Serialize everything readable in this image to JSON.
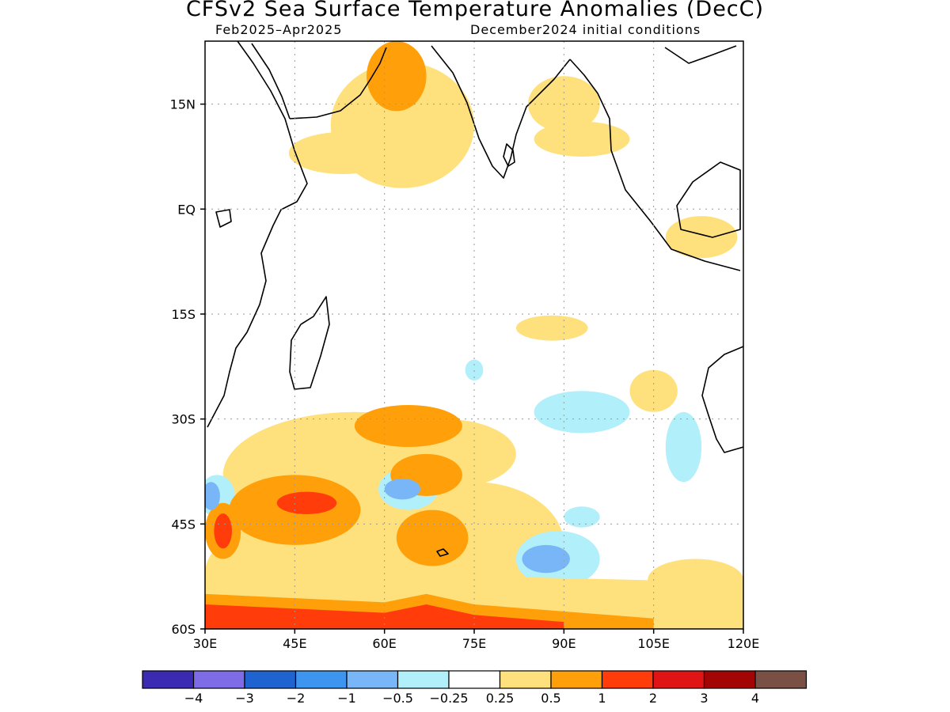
{
  "title": "CFSv2 Sea Surface Temperature Anomalies (DecC)",
  "subtitle_left": "Feb2025–Apr2025",
  "subtitle_right": "December2024 initial conditions",
  "axes": {
    "lon_range": [
      30,
      120
    ],
    "lat_range": [
      -60,
      24
    ],
    "y_ticks": [
      {
        "label": "15N",
        "lat": 15
      },
      {
        "label": "EQ",
        "lat": 0
      },
      {
        "label": "15S",
        "lat": -15
      },
      {
        "label": "30S",
        "lat": -30
      },
      {
        "label": "45S",
        "lat": -45
      },
      {
        "label": "60S",
        "lat": -60
      }
    ],
    "x_ticks": [
      {
        "label": "30E",
        "lon": 30
      },
      {
        "label": "45E",
        "lon": 45
      },
      {
        "label": "60E",
        "lon": 60
      },
      {
        "label": "75E",
        "lon": 75
      },
      {
        "label": "90E",
        "lon": 90
      },
      {
        "label": "105E",
        "lon": 105
      },
      {
        "label": "120E",
        "lon": 120
      }
    ],
    "grid": "dotted"
  },
  "colorbar": {
    "colors": [
      "#3b2bb3",
      "#7e6be6",
      "#1e63cf",
      "#3d95f0",
      "#78b6f7",
      "#b1effa",
      "#ffffff",
      "#fee17d",
      "#ffa00a",
      "#ff3c0a",
      "#e01414",
      "#a30505",
      "#7a5045"
    ],
    "labels": [
      "−4",
      "−3",
      "−2",
      "−1",
      "−0.5",
      "−0.25",
      "0.25",
      "0.5",
      "1",
      "2",
      "3",
      "4"
    ]
  },
  "anomaly_regions": [
    {
      "level": "0.5",
      "color": "#fee17d",
      "lon": 55,
      "lat": -38,
      "dlon": 22,
      "dlat": 9
    },
    {
      "level": "0.5",
      "color": "#fee17d",
      "lon": 48,
      "lat": -52,
      "dlon": 18,
      "dlat": 8
    },
    {
      "level": "0.5",
      "color": "#fee17d",
      "lon": 75,
      "lat": -48,
      "dlon": 15,
      "dlat": 9
    },
    {
      "level": "0.5",
      "color": "#fee17d",
      "lon": 70,
      "lat": -35,
      "dlon": 12,
      "dlat": 5
    },
    {
      "level": "0.5",
      "color": "#fee17d",
      "lon": 63,
      "lat": 12,
      "dlon": 12,
      "dlat": 9
    },
    {
      "level": "0.5",
      "color": "#fee17d",
      "lon": 53,
      "lat": 8,
      "dlon": 9,
      "dlat": 3
    },
    {
      "level": "0.5",
      "color": "#fee17d",
      "lon": 90,
      "lat": 15,
      "dlon": 6,
      "dlat": 4
    },
    {
      "level": "0.5",
      "color": "#fee17d",
      "lon": 93,
      "lat": 10,
      "dlon": 8,
      "dlat": 2.5
    },
    {
      "level": "0.5",
      "color": "#fee17d",
      "lon": 113,
      "lat": -4,
      "dlon": 6,
      "dlat": 3
    },
    {
      "level": "0.5",
      "color": "#fee17d",
      "lon": 88,
      "lat": -17,
      "dlon": 6,
      "dlat": 1.8
    },
    {
      "level": "0.5",
      "color": "#fee17d",
      "lon": 105,
      "lat": -26,
      "dlon": 4,
      "dlat": 3
    },
    {
      "level": "0.5",
      "color": "#fee17d",
      "lon": 112,
      "lat": -53,
      "dlon": 8,
      "dlat": 3
    },
    {
      "level": "1",
      "color": "#ffa00a",
      "lon": 64,
      "lat": -31,
      "dlon": 9,
      "dlat": 3
    },
    {
      "level": "1",
      "color": "#ffa00a",
      "lon": 67,
      "lat": -38,
      "dlon": 6,
      "dlat": 3
    },
    {
      "level": "1",
      "color": "#ffa00a",
      "lon": 45,
      "lat": -43,
      "dlon": 11,
      "dlat": 5
    },
    {
      "level": "1",
      "color": "#ffa00a",
      "lon": 68,
      "lat": -47,
      "dlon": 6,
      "dlat": 4
    },
    {
      "level": "1",
      "color": "#ffa00a",
      "lon": 62,
      "lat": 19,
      "dlon": 5,
      "dlat": 5
    },
    {
      "level": "1",
      "color": "#ffa00a",
      "lon": 33,
      "lat": -46,
      "dlon": 3,
      "dlat": 4
    },
    {
      "level": "2",
      "color": "#ff3c0a",
      "lon": 47,
      "lat": -42,
      "dlon": 5,
      "dlat": 1.6
    },
    {
      "level": "2",
      "color": "#ff3c0a",
      "lon": 33,
      "lat": -46,
      "dlon": 1.5,
      "dlat": 2.5
    },
    {
      "level": "-0.25",
      "color": "#b1effa",
      "lon": 93,
      "lat": -29,
      "dlon": 8,
      "dlat": 3
    },
    {
      "level": "-0.25",
      "color": "#b1effa",
      "lon": 110,
      "lat": -34,
      "dlon": 3,
      "dlat": 5
    },
    {
      "level": "-0.25",
      "color": "#b1effa",
      "lon": 89,
      "lat": -50,
      "dlon": 7,
      "dlat": 4
    },
    {
      "level": "-0.25",
      "color": "#b1effa",
      "lon": 64,
      "lat": -40,
      "dlon": 5,
      "dlat": 3
    },
    {
      "level": "-0.25",
      "color": "#b1effa",
      "lon": 32,
      "lat": -41,
      "dlon": 3,
      "dlat": 3
    },
    {
      "level": "-0.25",
      "color": "#b1effa",
      "lon": 93,
      "lat": -44,
      "dlon": 3,
      "dlat": 1.5
    },
    {
      "level": "-0.25",
      "color": "#b1effa",
      "lon": 75,
      "lat": -23,
      "dlon": 1.5,
      "dlat": 1.5
    },
    {
      "level": "-0.5",
      "color": "#78b6f7",
      "lon": 63,
      "lat": -40,
      "dlon": 3,
      "dlat": 1.5
    },
    {
      "level": "-0.5",
      "color": "#78b6f7",
      "lon": 87,
      "lat": -50,
      "dlon": 4,
      "dlat": 2
    },
    {
      "level": "-0.5",
      "color": "#78b6f7",
      "lon": 31,
      "lat": -41,
      "dlon": 1.5,
      "dlat": 2
    }
  ]
}
